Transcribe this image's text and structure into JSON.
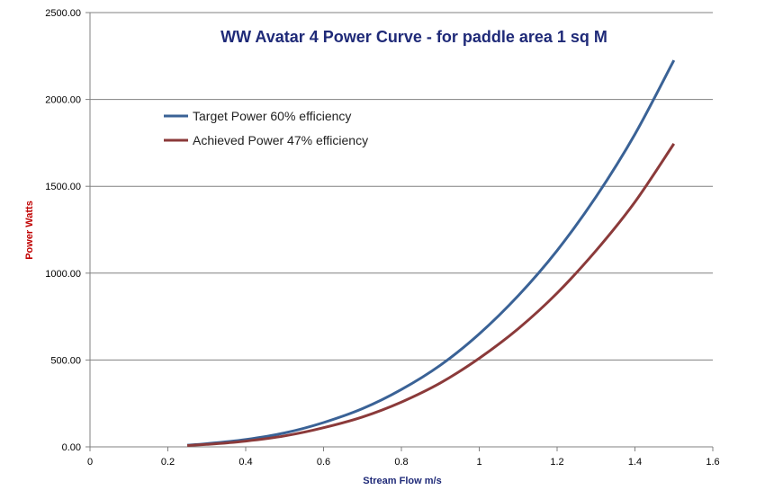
{
  "chart_data": {
    "type": "line",
    "title": "WW Avatar 4 Power Curve - for paddle area 1 sq M",
    "xlabel": "Stream Flow m/s",
    "ylabel": "Power Watts",
    "xlim": [
      0,
      1.6
    ],
    "ylim": [
      0,
      2500
    ],
    "x_ticks": [
      "0",
      "0.2",
      "0.4",
      "0.6",
      "0.8",
      "1",
      "1.2",
      "1.4",
      "1.6"
    ],
    "y_ticks": [
      "0.00",
      "500.00",
      "1000.00",
      "1500.00",
      "2000.00",
      "2500.00"
    ],
    "grid": "horizontal",
    "legend_position": "top-left",
    "colors": {
      "title": "#1f2a78",
      "axis_title": "#c00000",
      "x_axis_title": "#1f2a78",
      "gridline": "#808080"
    },
    "series": [
      {
        "name": "Target Power 60% efficiency",
        "color": "#3a6296",
        "x": [
          0.25,
          0.3,
          0.4,
          0.5,
          0.6,
          0.7,
          0.8,
          0.9,
          1.0,
          1.1,
          1.2,
          1.3,
          1.4,
          1.5
        ],
        "y": [
          10,
          18,
          42,
          80,
          140,
          220,
          330,
          470,
          650,
          870,
          1130,
          1440,
          1800,
          2225
        ]
      },
      {
        "name": "Achieved Power 47% efficiency",
        "color": "#8b3a3a",
        "x": [
          0.25,
          0.3,
          0.4,
          0.5,
          0.6,
          0.7,
          0.8,
          0.9,
          1.0,
          1.1,
          1.2,
          1.3,
          1.4,
          1.5
        ],
        "y": [
          8,
          14,
          33,
          63,
          110,
          172,
          258,
          368,
          510,
          680,
          885,
          1130,
          1410,
          1745
        ]
      }
    ]
  }
}
